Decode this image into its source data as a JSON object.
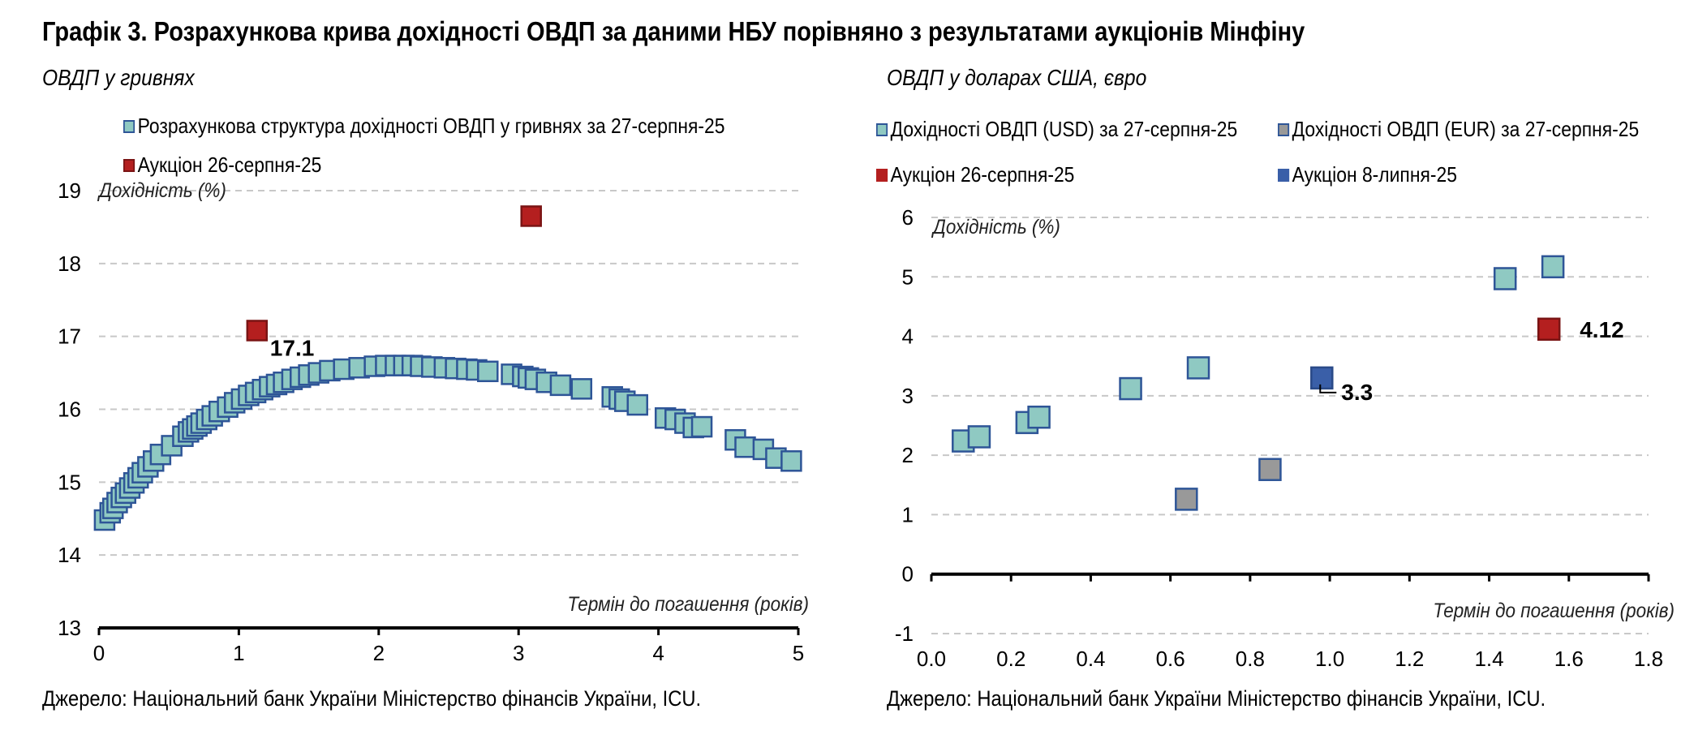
{
  "title": "Графік 3. Розрахункова крива дохідності ОВДП за даними НБУ порівняно з результатами аукціонів Мінфіну",
  "left_panel": {
    "subtitle": "ОВДП у гривнях",
    "source": "Джерело: Національний банк України Міністерство фінансів України, ICU.",
    "legend": [
      {
        "label": "Розрахункова структура дохідності ОВДП у гривнях за 27-серпня-25",
        "color": "#8fc9c2"
      },
      {
        "label": "Аукціон 26-серпня-25",
        "color": "#b41f1f"
      }
    ]
  },
  "right_panel": {
    "subtitle": "ОВДП у доларах США, євро",
    "source": "Джерело: Національний банк України Міністерство фінансів України, ICU.",
    "legend": [
      {
        "label": "Дохідності ОВДП (USD) за 27-серпня-25",
        "color": "#8fc9c2"
      },
      {
        "label": "Дохідності ОВДП (EUR) за 27-серпня-25",
        "color": "#999999"
      },
      {
        "label": "Аукціон 26-серпня-25",
        "color": "#b41f1f"
      },
      {
        "label": "Аукціон 8-липня-25",
        "color": "#3a5fa8"
      }
    ]
  },
  "chart_data": [
    {
      "type": "scatter",
      "ylabel": "Дохідність (%)",
      "xlabel": "Термін до погашення (років)",
      "xlim": [
        0,
        5
      ],
      "ylim": [
        13,
        19
      ],
      "xticks": [
        "0",
        "1",
        "2",
        "3",
        "4",
        "5"
      ],
      "yticks": [
        "13",
        "14",
        "15",
        "16",
        "17",
        "18",
        "19"
      ],
      "grid": true,
      "series": [
        {
          "name": "Розрахункова структура дохідності ОВДП у гривнях за 27-серпня-25",
          "color": "#8fc9c2",
          "border": "#2e5597",
          "points": [
            [
              0.04,
              14.48
            ],
            [
              0.08,
              14.58
            ],
            [
              0.1,
              14.64
            ],
            [
              0.13,
              14.72
            ],
            [
              0.16,
              14.79
            ],
            [
              0.19,
              14.85
            ],
            [
              0.22,
              14.92
            ],
            [
              0.25,
              14.99
            ],
            [
              0.28,
              15.06
            ],
            [
              0.31,
              15.13
            ],
            [
              0.35,
              15.21
            ],
            [
              0.39,
              15.29
            ],
            [
              0.44,
              15.38
            ],
            [
              0.52,
              15.5
            ],
            [
              0.6,
              15.63
            ],
            [
              0.64,
              15.69
            ],
            [
              0.67,
              15.73
            ],
            [
              0.7,
              15.77
            ],
            [
              0.73,
              15.81
            ],
            [
              0.77,
              15.86
            ],
            [
              0.81,
              15.91
            ],
            [
              0.86,
              15.97
            ],
            [
              0.92,
              16.03
            ],
            [
              0.97,
              16.09
            ],
            [
              1.02,
              16.14
            ],
            [
              1.07,
              16.19
            ],
            [
              1.12,
              16.23
            ],
            [
              1.17,
              16.27
            ],
            [
              1.22,
              16.31
            ],
            [
              1.27,
              16.34
            ],
            [
              1.32,
              16.37
            ],
            [
              1.38,
              16.41
            ],
            [
              1.44,
              16.44
            ],
            [
              1.5,
              16.47
            ],
            [
              1.57,
              16.5
            ],
            [
              1.65,
              16.53
            ],
            [
              1.75,
              16.55
            ],
            [
              1.86,
              16.57
            ],
            [
              1.97,
              16.59
            ],
            [
              2.05,
              16.6
            ],
            [
              2.12,
              16.6
            ],
            [
              2.18,
              16.6
            ],
            [
              2.24,
              16.6
            ],
            [
              2.3,
              16.59
            ],
            [
              2.38,
              16.58
            ],
            [
              2.47,
              16.57
            ],
            [
              2.55,
              16.56
            ],
            [
              2.63,
              16.55
            ],
            [
              2.7,
              16.54
            ],
            [
              2.78,
              16.52
            ],
            [
              2.95,
              16.48
            ],
            [
              3.03,
              16.45
            ],
            [
              3.07,
              16.43
            ],
            [
              3.12,
              16.41
            ],
            [
              3.2,
              16.37
            ],
            [
              3.3,
              16.33
            ],
            [
              3.45,
              16.28
            ],
            [
              3.67,
              16.17
            ],
            [
              3.72,
              16.14
            ],
            [
              3.76,
              16.11
            ],
            [
              3.85,
              16.06
            ],
            [
              4.05,
              15.88
            ],
            [
              4.12,
              15.86
            ],
            [
              4.19,
              15.81
            ],
            [
              4.25,
              15.75
            ],
            [
              4.31,
              15.76
            ],
            [
              4.55,
              15.58
            ],
            [
              4.62,
              15.48
            ],
            [
              4.75,
              15.45
            ],
            [
              4.84,
              15.33
            ],
            [
              4.95,
              15.29
            ]
          ]
        },
        {
          "name": "Аукціон 26-серпня-25",
          "color": "#b41f1f",
          "border": "#7a1414",
          "points": [
            [
              1.13,
              17.08
            ],
            [
              3.09,
              18.65
            ]
          ]
        }
      ],
      "annotations": [
        {
          "text": "17.1",
          "x": 1.13,
          "y": 17.08
        }
      ]
    },
    {
      "type": "scatter",
      "ylabel": "Дохідність (%)",
      "xlabel": "Термін до погашення (років)",
      "xlim": [
        0,
        1.8
      ],
      "ylim": [
        -1,
        6
      ],
      "xticks": [
        "0.0",
        "0.2",
        "0.4",
        "0.6",
        "0.8",
        "1.0",
        "1.2",
        "1.4",
        "1.6",
        "1.8"
      ],
      "yticks": [
        "-1",
        "0",
        "1",
        "2",
        "3",
        "4",
        "5",
        "6"
      ],
      "grid": true,
      "series": [
        {
          "name": "Дохідності ОВДП (USD) за 27-серпня-25",
          "color": "#8fc9c2",
          "border": "#2e5597",
          "points": [
            [
              0.08,
              2.24
            ],
            [
              0.12,
              2.31
            ],
            [
              0.24,
              2.55
            ],
            [
              0.27,
              2.64
            ],
            [
              0.5,
              3.12
            ],
            [
              0.67,
              3.47
            ],
            [
              1.44,
              4.97
            ],
            [
              1.56,
              5.17
            ]
          ]
        },
        {
          "name": "Дохідності ОВДП (EUR) за 27-серпня-25",
          "color": "#999999",
          "border": "#2e5597",
          "points": [
            [
              0.64,
              1.26
            ],
            [
              0.85,
              1.76
            ]
          ]
        },
        {
          "name": "Аукціон 26-серпня-25",
          "color": "#b41f1f",
          "border": "#7a1414",
          "points": [
            [
              1.55,
              4.12
            ]
          ]
        },
        {
          "name": "Аукціон 8-липня-25",
          "color": "#3a5fa8",
          "border": "#2a4a88",
          "points": [
            [
              0.98,
              3.3
            ]
          ]
        }
      ],
      "annotations": [
        {
          "text": "4.12",
          "x": 1.55,
          "y": 4.12
        },
        {
          "text": "3.3",
          "x": 0.98,
          "y": 3.3
        }
      ]
    }
  ]
}
